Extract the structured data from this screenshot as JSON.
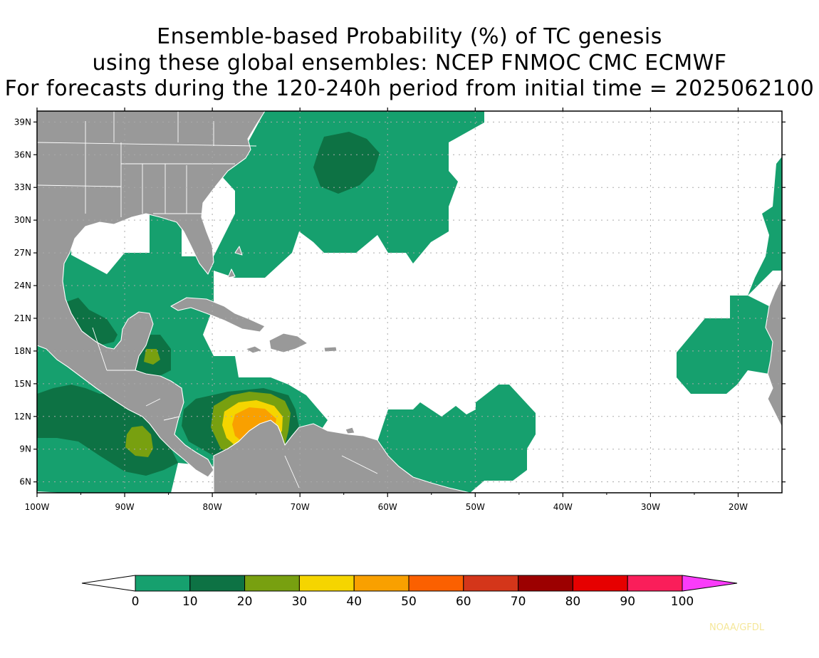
{
  "title": {
    "line1": "Ensemble-based Probability (%) of TC genesis",
    "line2": "using these global ensembles:   NCEP FNMOC CMC ECMWF",
    "line3": "For forecasts during the 120-240h period from initial time = 2025062100"
  },
  "map": {
    "lon_range": [
      -100,
      -15
    ],
    "lat_range": [
      5,
      40
    ],
    "lon_ticks": [
      {
        "value": -100,
        "label": "100W"
      },
      {
        "value": -90,
        "label": "90W"
      },
      {
        "value": -80,
        "label": "80W"
      },
      {
        "value": -70,
        "label": "70W"
      },
      {
        "value": -60,
        "label": "60W"
      },
      {
        "value": -50,
        "label": "50W"
      },
      {
        "value": -40,
        "label": "40W"
      },
      {
        "value": -30,
        "label": "30W"
      },
      {
        "value": -20,
        "label": "20W"
      }
    ],
    "lat_ticks": [
      {
        "value": 6,
        "label": "6N"
      },
      {
        "value": 9,
        "label": "9N"
      },
      {
        "value": 12,
        "label": "12N"
      },
      {
        "value": 15,
        "label": "15N"
      },
      {
        "value": 18,
        "label": "18N"
      },
      {
        "value": 21,
        "label": "21N"
      },
      {
        "value": 24,
        "label": "24N"
      },
      {
        "value": 27,
        "label": "27N"
      },
      {
        "value": 30,
        "label": "30N"
      },
      {
        "value": 33,
        "label": "33N"
      },
      {
        "value": 36,
        "label": "36N"
      },
      {
        "value": 39,
        "label": "39N"
      }
    ],
    "grid": "dotted",
    "land_color": "#999999",
    "ocean_color": "#ffffff"
  },
  "legend": {
    "bins": [
      {
        "color": "#16a06e"
      },
      {
        "color": "#0d7244"
      },
      {
        "color": "#78a010"
      },
      {
        "color": "#f5d500"
      },
      {
        "color": "#f9a000"
      },
      {
        "color": "#fb6000"
      },
      {
        "color": "#d4361a"
      },
      {
        "color": "#9c0000"
      },
      {
        "color": "#e60000"
      },
      {
        "color": "#fa1e5a"
      }
    ],
    "under_color": "#ffffff",
    "over_color": "#fa3cfa",
    "labels": [
      "0",
      "10",
      "20",
      "30",
      "40",
      "50",
      "60",
      "70",
      "80",
      "90",
      "100"
    ]
  },
  "credit": "NOAA/GFDL"
}
